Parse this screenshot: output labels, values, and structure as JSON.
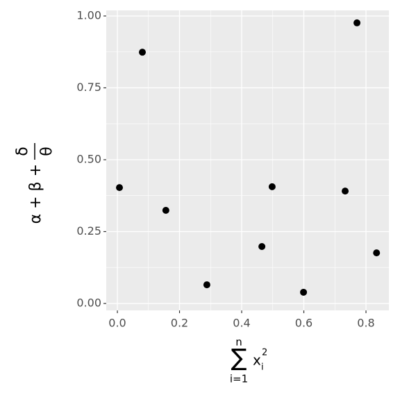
{
  "chart_data": {
    "type": "scatter",
    "x": [
      0.0067,
      0.0804,
      0.156,
      0.288,
      0.465,
      0.498,
      0.599,
      0.733,
      0.771,
      0.834
    ],
    "values": [
      0.403,
      0.874,
      0.324,
      0.065,
      0.198,
      0.406,
      0.039,
      0.391,
      0.976,
      0.176
    ],
    "color": "#000000",
    "xlim": [
      -0.0358,
      0.8737
    ],
    "ylim": [
      -0.0242,
      1.0193
    ],
    "xticks": [
      {
        "value": 0,
        "label": "0.0"
      },
      0.2,
      0.4,
      0.6,
      0.8
    ],
    "yticks": [
      {
        "value": 0,
        "label": "0.00"
      },
      0.25,
      {
        "value": 0.5,
        "label": "0.50"
      },
      0.75,
      {
        "value": 1,
        "label": "1.00"
      }
    ],
    "grid": true,
    "ylabel": {
      "main": "α + β +",
      "numerator": "δ",
      "denominator": "θ"
    },
    "xlabel": {
      "operator": "∑",
      "upper": "n",
      "lower": "i=1",
      "base": "x",
      "subscript": "i",
      "superscript": "2"
    }
  }
}
